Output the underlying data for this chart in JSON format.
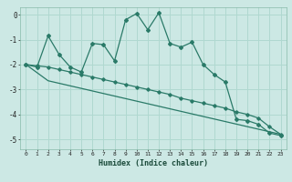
{
  "xlabel": "Humidex (Indice chaleur)",
  "background_color": "#cce8e4",
  "grid_color": "#b0d8d0",
  "line_color": "#2a7a68",
  "x_ticks": [
    0,
    1,
    2,
    3,
    4,
    5,
    6,
    7,
    8,
    9,
    10,
    11,
    12,
    13,
    14,
    15,
    16,
    17,
    18,
    19,
    20,
    21,
    22,
    23
  ],
  "y_ticks": [
    0,
    -1,
    -2,
    -3,
    -4,
    -5
  ],
  "ylim": [
    -5.4,
    0.3
  ],
  "xlim": [
    -0.5,
    23.5
  ],
  "series1_x": [
    0,
    1,
    2,
    3,
    4,
    5,
    6,
    7,
    8,
    9,
    10,
    11,
    12,
    13,
    14,
    15,
    16,
    17,
    18,
    19,
    20,
    21,
    22,
    23
  ],
  "series1_y": [
    -2.0,
    -2.1,
    -0.85,
    -1.6,
    -2.1,
    -2.3,
    -1.15,
    -1.2,
    -1.85,
    -0.2,
    0.05,
    -0.6,
    0.08,
    -1.15,
    -1.3,
    -1.1,
    -2.0,
    -2.4,
    -2.7,
    -4.2,
    -4.25,
    -4.4,
    -4.75,
    -4.85
  ],
  "series2_x": [
    0,
    1,
    2,
    3,
    4,
    5,
    6,
    7,
    8,
    9,
    10,
    11,
    12,
    13,
    14,
    15,
    16,
    17,
    18,
    19,
    20,
    21,
    22,
    23
  ],
  "series2_y": [
    -2.0,
    -2.05,
    -2.1,
    -2.2,
    -2.3,
    -2.4,
    -2.5,
    -2.6,
    -2.7,
    -2.8,
    -2.9,
    -3.0,
    -3.1,
    -3.2,
    -3.35,
    -3.45,
    -3.55,
    -3.65,
    -3.75,
    -3.9,
    -4.0,
    -4.15,
    -4.5,
    -4.8
  ],
  "series3_x": [
    0,
    2,
    23
  ],
  "series3_y": [
    -2.0,
    -2.65,
    -4.8
  ]
}
